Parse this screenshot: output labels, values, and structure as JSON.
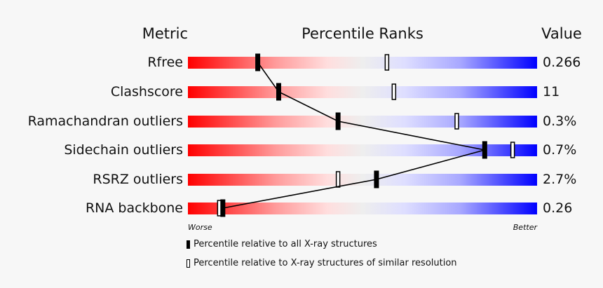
{
  "headers": {
    "metric": "Metric",
    "percentile_ranks": "Percentile Ranks",
    "value": "Value"
  },
  "scale": {
    "worse": "Worse",
    "better": "Better"
  },
  "legend": {
    "absolute": "Percentile relative to all X-ray structures",
    "relative": "Percentile relative to X-ray structures of similar resolution"
  },
  "colors": {
    "worse": "#ff0000",
    "neutral": "#eeeeee",
    "better": "#0000ff",
    "background": "#f7f7f7"
  },
  "rows": [
    {
      "metric": "Rfree",
      "value": "0.266",
      "absolute_percentile": 20,
      "relative_percentile": 57
    },
    {
      "metric": "Clashscore",
      "value": "11",
      "absolute_percentile": 26,
      "relative_percentile": 59
    },
    {
      "metric": "Ramachandran outliers",
      "value": "0.3%",
      "absolute_percentile": 43,
      "relative_percentile": 77
    },
    {
      "metric": "Sidechain outliers",
      "value": "0.7%",
      "absolute_percentile": 85,
      "relative_percentile": 93
    },
    {
      "metric": "RSRZ outliers",
      "value": "2.7%",
      "absolute_percentile": 54,
      "relative_percentile": 43
    },
    {
      "metric": "RNA backbone",
      "value": "0.26",
      "absolute_percentile": 10,
      "relative_percentile": 9
    }
  ],
  "chart_data": {
    "type": "bar",
    "title": "Percentile Ranks",
    "categories": [
      "Rfree",
      "Clashscore",
      "Ramachandran outliers",
      "Sidechain outliers",
      "RSRZ outliers",
      "RNA backbone"
    ],
    "values_display": [
      "0.266",
      "11",
      "0.3%",
      "0.7%",
      "2.7%",
      "0.26"
    ],
    "series": [
      {
        "name": "Percentile relative to all X-ray structures",
        "marker": "filled",
        "values": [
          20,
          26,
          43,
          85,
          54,
          10
        ]
      },
      {
        "name": "Percentile relative to X-ray structures of similar resolution",
        "marker": "open",
        "values": [
          57,
          59,
          77,
          93,
          43,
          9
        ]
      }
    ],
    "xlabel": "",
    "ylabel": "",
    "xlim": [
      0,
      100
    ],
    "x_axis_ends": [
      "Worse",
      "Better"
    ],
    "column_headers": [
      "Metric",
      "Percentile Ranks",
      "Value"
    ],
    "grid": false,
    "legend_position": "bottom",
    "connector_line": "joins filled (all X-ray) markers across rows"
  }
}
